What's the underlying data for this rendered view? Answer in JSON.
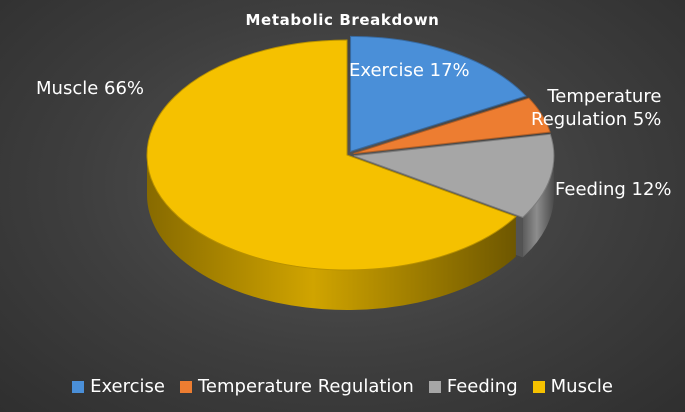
{
  "chart_data": {
    "type": "pie",
    "title": "Metabolic Breakdown",
    "categories": [
      "Exercise",
      "Temperature Regulation",
      "Feeding",
      "Muscle"
    ],
    "values": [
      17,
      5,
      12,
      66
    ],
    "unit": "%",
    "colors": [
      "#4a8fd8",
      "#ed7d31",
      "#a6a6a6",
      "#f5c100"
    ],
    "data_labels": [
      [
        "Exercise 17%"
      ],
      [
        "Temperature",
        "Regulation 5%"
      ],
      [
        "Feeding 12%"
      ],
      [
        "Muscle 66%"
      ]
    ],
    "legend_position": "bottom",
    "style": "3d-exploded"
  }
}
